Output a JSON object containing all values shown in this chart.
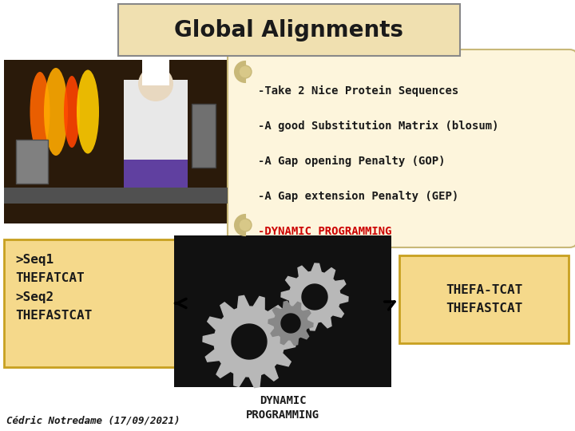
{
  "title": "Global Alignments",
  "title_bg": "#f0e0b0",
  "title_border": "#888888",
  "bullet_points": [
    "-Take 2 Nice Protein Sequences",
    "-A good Substitution Matrix (blosum)",
    "-A Gap opening Penalty (GOP)",
    "-A Gap extension Penalty (GEP)"
  ],
  "dynamic_text": "-DYNAMIC PROGRAMMING",
  "dynamic_color": "#cc0000",
  "scroll_bg": "#fdf5dc",
  "scroll_border": "#c8b878",
  "left_box_text": ">Seq1\nTHEFATCAT\n>Seq2\nTHEFASTCAT",
  "left_box_bg": "#f5d98b",
  "left_box_border": "#c8a020",
  "right_box_text": "THEFA-TCAT\nTHEFASTCAT",
  "right_box_bg": "#f5d98b",
  "right_box_border": "#c8a020",
  "bottom_label": "DYNAMIC\nPROGRAMMING",
  "footer_text": "Cédric Notredame (17/09/2021)",
  "bg_color": "#ffffff",
  "gear_color": "#b8b8b8",
  "gear_dark": "#888888"
}
